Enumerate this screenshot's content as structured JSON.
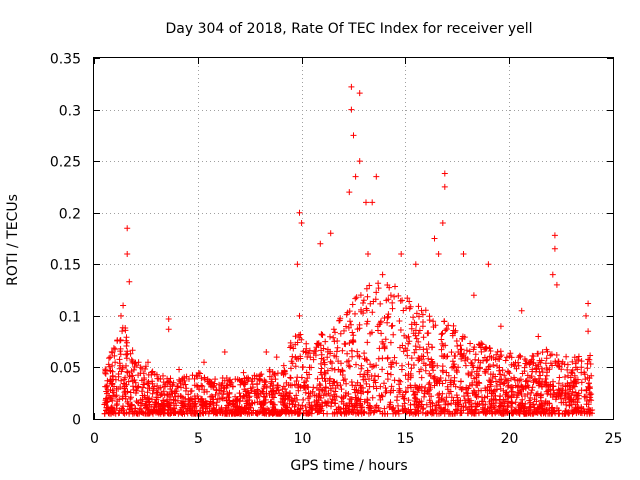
{
  "chart_data": {
    "type": "scatter",
    "title": "Day 304 of 2018, Rate Of TEC Index for receiver yell",
    "xlabel": "GPS time / hours",
    "ylabel": "ROTI / TECUs",
    "xlim": [
      0,
      25
    ],
    "ylim": [
      0,
      0.35
    ],
    "x_ticks": [
      0,
      5,
      10,
      15,
      20,
      25
    ],
    "x_tick_labels": [
      "0",
      "5",
      "10",
      "15",
      "20",
      "25"
    ],
    "y_ticks": [
      0,
      0.05,
      0.1,
      0.15,
      0.2,
      0.25,
      0.3,
      0.35
    ],
    "y_tick_labels": [
      "0",
      "0.05",
      "0.1",
      "0.15",
      "0.2",
      "0.25",
      "0.3",
      "0.35"
    ],
    "grid": true,
    "marker": "+",
    "color": "#ff0000",
    "series": [
      {
        "name": "ROTI",
        "notable_points": [
          {
            "x": 1.6,
            "y": 0.185
          },
          {
            "x": 1.6,
            "y": 0.16
          },
          {
            "x": 1.7,
            "y": 0.133
          },
          {
            "x": 1.4,
            "y": 0.11
          },
          {
            "x": 1.3,
            "y": 0.1
          },
          {
            "x": 3.6,
            "y": 0.097
          },
          {
            "x": 3.6,
            "y": 0.087
          },
          {
            "x": 6.3,
            "y": 0.065
          },
          {
            "x": 9.9,
            "y": 0.2
          },
          {
            "x": 10.0,
            "y": 0.19
          },
          {
            "x": 9.8,
            "y": 0.15
          },
          {
            "x": 9.9,
            "y": 0.1
          },
          {
            "x": 10.9,
            "y": 0.17
          },
          {
            "x": 11.4,
            "y": 0.18
          },
          {
            "x": 12.4,
            "y": 0.322
          },
          {
            "x": 12.8,
            "y": 0.316
          },
          {
            "x": 12.4,
            "y": 0.3
          },
          {
            "x": 12.5,
            "y": 0.275
          },
          {
            "x": 12.8,
            "y": 0.25
          },
          {
            "x": 12.6,
            "y": 0.235
          },
          {
            "x": 12.3,
            "y": 0.22
          },
          {
            "x": 13.1,
            "y": 0.21
          },
          {
            "x": 13.6,
            "y": 0.235
          },
          {
            "x": 13.4,
            "y": 0.21
          },
          {
            "x": 13.2,
            "y": 0.16
          },
          {
            "x": 13.9,
            "y": 0.14
          },
          {
            "x": 14.3,
            "y": 0.12
          },
          {
            "x": 14.8,
            "y": 0.16
          },
          {
            "x": 15.5,
            "y": 0.15
          },
          {
            "x": 16.4,
            "y": 0.175
          },
          {
            "x": 16.6,
            "y": 0.16
          },
          {
            "x": 16.9,
            "y": 0.238
          },
          {
            "x": 16.9,
            "y": 0.225
          },
          {
            "x": 16.8,
            "y": 0.19
          },
          {
            "x": 17.8,
            "y": 0.16
          },
          {
            "x": 18.3,
            "y": 0.12
          },
          {
            "x": 19.0,
            "y": 0.15
          },
          {
            "x": 19.6,
            "y": 0.09
          },
          {
            "x": 20.6,
            "y": 0.105
          },
          {
            "x": 22.2,
            "y": 0.178
          },
          {
            "x": 22.2,
            "y": 0.165
          },
          {
            "x": 22.1,
            "y": 0.14
          },
          {
            "x": 22.3,
            "y": 0.13
          },
          {
            "x": 23.8,
            "y": 0.112
          },
          {
            "x": 23.7,
            "y": 0.1
          },
          {
            "x": 23.8,
            "y": 0.085
          },
          {
            "x": 21.4,
            "y": 0.08
          },
          {
            "x": 8.3,
            "y": 0.065
          },
          {
            "x": 5.3,
            "y": 0.055
          },
          {
            "x": 4.1,
            "y": 0.048
          },
          {
            "x": 2.6,
            "y": 0.055
          },
          {
            "x": 7.2,
            "y": 0.045
          },
          {
            "x": 8.8,
            "y": 0.06
          }
        ],
        "envelope": [
          {
            "x": 0.5,
            "y": 0.05
          },
          {
            "x": 1.0,
            "y": 0.075
          },
          {
            "x": 1.5,
            "y": 0.095
          },
          {
            "x": 2.0,
            "y": 0.06
          },
          {
            "x": 3.0,
            "y": 0.045
          },
          {
            "x": 4.0,
            "y": 0.04
          },
          {
            "x": 5.0,
            "y": 0.045
          },
          {
            "x": 6.0,
            "y": 0.04
          },
          {
            "x": 7.0,
            "y": 0.04
          },
          {
            "x": 8.0,
            "y": 0.045
          },
          {
            "x": 9.0,
            "y": 0.055
          },
          {
            "x": 9.8,
            "y": 0.09
          },
          {
            "x": 10.5,
            "y": 0.065
          },
          {
            "x": 11.0,
            "y": 0.085
          },
          {
            "x": 12.0,
            "y": 0.1
          },
          {
            "x": 13.0,
            "y": 0.13
          },
          {
            "x": 14.0,
            "y": 0.14
          },
          {
            "x": 15.0,
            "y": 0.12
          },
          {
            "x": 16.0,
            "y": 0.11
          },
          {
            "x": 17.0,
            "y": 0.095
          },
          {
            "x": 18.0,
            "y": 0.08
          },
          {
            "x": 19.0,
            "y": 0.07
          },
          {
            "x": 20.0,
            "y": 0.065
          },
          {
            "x": 21.0,
            "y": 0.06
          },
          {
            "x": 22.0,
            "y": 0.07
          },
          {
            "x": 23.0,
            "y": 0.06
          },
          {
            "x": 23.9,
            "y": 0.065
          }
        ],
        "baseline_min": 0.005,
        "x_range": [
          0.5,
          24.0
        ]
      }
    ]
  }
}
